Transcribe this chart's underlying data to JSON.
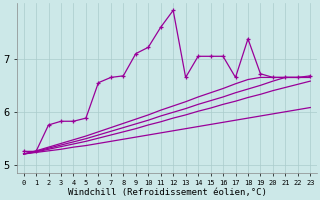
{
  "xlabel": "Windchill (Refroidissement éolien,°C)",
  "ylabel": "",
  "bg_color": "#cce8e8",
  "line_color": "#990099",
  "xlim": [
    -0.5,
    23.5
  ],
  "ylim": [
    4.85,
    8.05
  ],
  "x_ticks": [
    0,
    1,
    2,
    3,
    4,
    5,
    6,
    7,
    8,
    9,
    10,
    11,
    12,
    13,
    14,
    15,
    16,
    17,
    18,
    19,
    20,
    21,
    22,
    23
  ],
  "y_ticks": [
    5,
    6,
    7
  ],
  "jagged_x": [
    0,
    1,
    2,
    3,
    4,
    5,
    6,
    7,
    8,
    9,
    10,
    11,
    12,
    13,
    14,
    15,
    16,
    17,
    18,
    19,
    20,
    21,
    22,
    23
  ],
  "jagged_y": [
    5.25,
    5.25,
    5.75,
    5.82,
    5.82,
    5.88,
    6.55,
    6.65,
    6.68,
    7.1,
    7.22,
    7.6,
    7.92,
    6.65,
    7.05,
    7.05,
    7.05,
    6.65,
    7.38,
    6.72,
    6.65,
    6.65,
    6.65,
    6.68
  ],
  "linear_lines": [
    [
      5.2,
      5.23,
      5.26,
      5.29,
      5.33,
      5.36,
      5.4,
      5.44,
      5.48,
      5.52,
      5.56,
      5.6,
      5.64,
      5.68,
      5.72,
      5.76,
      5.8,
      5.84,
      5.88,
      5.92,
      5.96,
      6.0,
      6.04,
      6.08
    ],
    [
      5.2,
      5.24,
      5.29,
      5.34,
      5.39,
      5.44,
      5.5,
      5.56,
      5.62,
      5.68,
      5.75,
      5.81,
      5.88,
      5.94,
      6.01,
      6.07,
      6.14,
      6.2,
      6.27,
      6.33,
      6.4,
      6.46,
      6.52,
      6.58
    ],
    [
      5.2,
      5.25,
      5.31,
      5.37,
      5.43,
      5.49,
      5.56,
      5.63,
      5.7,
      5.77,
      5.84,
      5.92,
      5.99,
      6.06,
      6.14,
      6.21,
      6.28,
      6.36,
      6.43,
      6.5,
      6.58,
      6.65,
      6.65,
      6.65
    ],
    [
      5.2,
      5.26,
      5.33,
      5.4,
      5.47,
      5.54,
      5.62,
      5.7,
      5.78,
      5.86,
      5.94,
      6.03,
      6.11,
      6.19,
      6.28,
      6.36,
      6.44,
      6.53,
      6.61,
      6.65,
      6.65,
      6.65,
      6.65,
      6.65
    ]
  ],
  "xlabel_fontsize": 6.5,
  "xtick_fontsize": 5.0,
  "ytick_fontsize": 7.5,
  "grid_color": "#aacccc",
  "spine_color": "#888888"
}
